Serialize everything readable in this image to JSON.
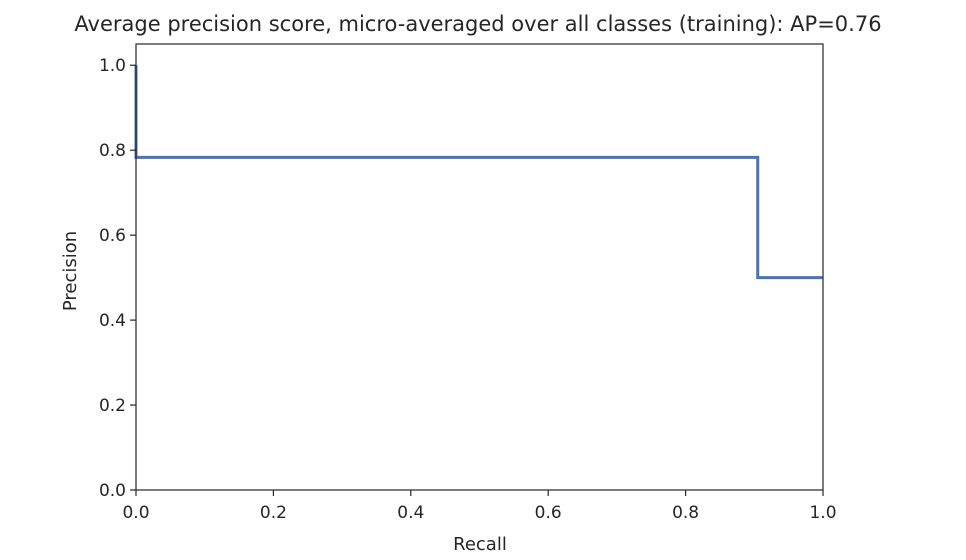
{
  "chart_data": {
    "type": "line",
    "drawstyle": "steps-post",
    "title": "Average precision score, micro-averaged over all classes (training): AP=0.76",
    "xlabel": "Recall",
    "ylabel": "Precision",
    "xlim": [
      0.0,
      1.0
    ],
    "ylim": [
      0.0,
      1.05
    ],
    "xticks": [
      0.0,
      0.2,
      0.4,
      0.6,
      0.8,
      1.0
    ],
    "xtick_labels": [
      "0.0",
      "0.2",
      "0.4",
      "0.6",
      "0.8",
      "1.0"
    ],
    "yticks": [
      0.0,
      0.2,
      0.4,
      0.6,
      0.8,
      1.0
    ],
    "ytick_labels": [
      "0.0",
      "0.2",
      "0.4",
      "0.6",
      "0.8",
      "1.0"
    ],
    "grid": false,
    "series": [
      {
        "color": "#4c72b0",
        "x": [
          0.0,
          0.0,
          0.905,
          0.905,
          1.0
        ],
        "y": [
          1.0,
          0.783,
          0.783,
          0.5,
          0.5
        ]
      }
    ]
  }
}
